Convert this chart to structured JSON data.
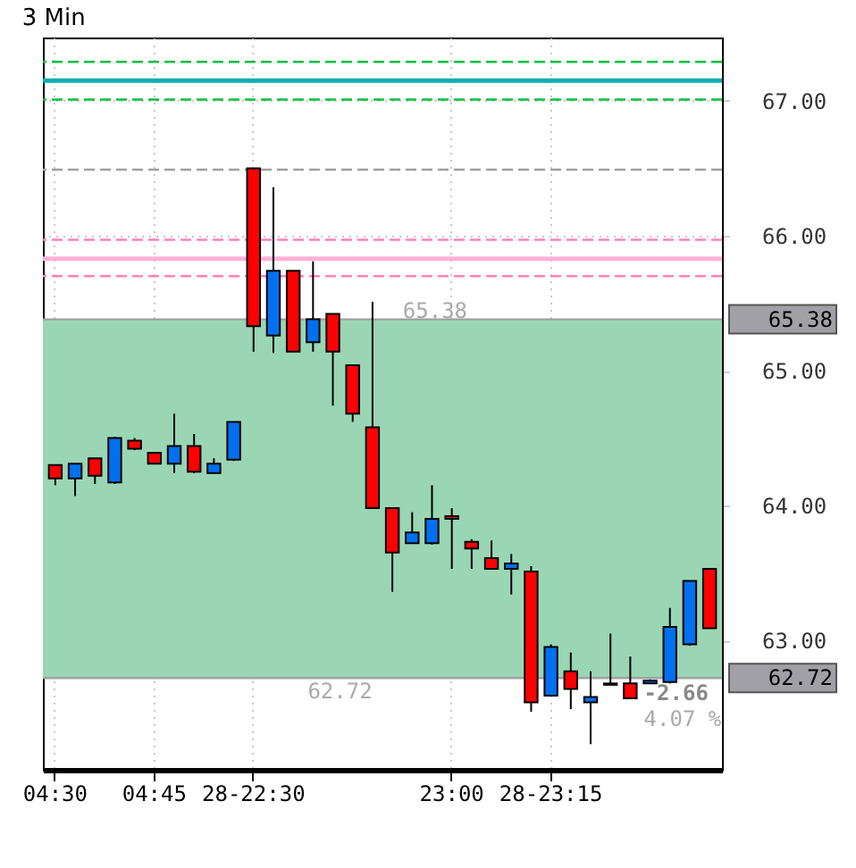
{
  "chart_data": {
    "type": "candlestick",
    "title": "3 Min",
    "categories": [
      "04:30",
      null,
      null,
      null,
      null,
      "04:45",
      null,
      null,
      null,
      null,
      "28-22:30",
      null,
      null,
      null,
      null,
      null,
      null,
      null,
      null,
      null,
      "23:00",
      null,
      null,
      null,
      null,
      "28-23:15",
      null,
      null,
      null,
      null,
      null,
      null,
      null,
      null
    ],
    "ohlc": [
      [
        64.3,
        64.3,
        64.15,
        64.2
      ],
      [
        64.2,
        64.31,
        64.07,
        64.31
      ],
      [
        64.35,
        64.35,
        64.16,
        64.22
      ],
      [
        64.17,
        64.51,
        64.16,
        64.5
      ],
      [
        64.48,
        64.5,
        64.41,
        64.42
      ],
      [
        64.39,
        64.39,
        64.31,
        64.31
      ],
      [
        64.31,
        64.68,
        64.24,
        64.44
      ],
      [
        64.44,
        64.53,
        64.24,
        64.25
      ],
      [
        64.24,
        64.35,
        64.24,
        64.31
      ],
      [
        64.34,
        64.62,
        64.33,
        64.62
      ],
      [
        66.5,
        66.5,
        65.14,
        65.33
      ],
      [
        65.26,
        66.36,
        65.13,
        65.74
      ],
      [
        65.74,
        65.74,
        65.14,
        65.14
      ],
      [
        65.21,
        65.81,
        65.14,
        65.38
      ],
      [
        65.42,
        65.42,
        64.74,
        65.14
      ],
      [
        65.04,
        65.04,
        64.62,
        64.68
      ],
      [
        64.58,
        65.51,
        63.98,
        63.98
      ],
      [
        63.98,
        63.98,
        63.36,
        63.65
      ],
      [
        63.72,
        63.95,
        63.72,
        63.8
      ],
      [
        63.72,
        64.15,
        63.71,
        63.9
      ],
      [
        63.92,
        63.98,
        63.53,
        63.9
      ],
      [
        63.73,
        63.75,
        63.53,
        63.68
      ],
      [
        63.61,
        63.74,
        63.53,
        63.53
      ],
      [
        63.53,
        63.64,
        63.34,
        63.57
      ],
      [
        63.51,
        63.55,
        62.47,
        62.54
      ],
      [
        62.59,
        62.97,
        62.59,
        62.95
      ],
      [
        62.77,
        62.91,
        62.49,
        62.64
      ],
      [
        62.54,
        62.77,
        62.23,
        62.58
      ],
      [
        62.68,
        63.05,
        62.67,
        62.67
      ],
      [
        62.68,
        62.88,
        62.57,
        62.57
      ],
      [
        62.68,
        62.71,
        62.68,
        62.7
      ],
      [
        62.69,
        63.24,
        62.68,
        63.1
      ],
      [
        62.97,
        63.44,
        62.96,
        63.44
      ],
      [
        63.53,
        63.53,
        63.09,
        63.09
      ]
    ],
    "colors": [
      "#ff0000",
      "#0070f0",
      "#ff0000",
      "#0070f0",
      "#ff0000",
      "#ff0000",
      "#0070f0",
      "#ff0000",
      "#0070f0",
      "#0070f0",
      "#ff0000",
      "#0070f0",
      "#ff0000",
      "#0070f0",
      "#ff0000",
      "#ff0000",
      "#ff0000",
      "#ff0000",
      "#0070f0",
      "#0070f0",
      "#ff0000",
      "#ff0000",
      "#ff0000",
      "#0070f0",
      "#ff0000",
      "#0070f0",
      "#ff0000",
      "#0070f0",
      "#ff0000",
      "#ff0000",
      "#0070f0",
      "#0070f0",
      "#0070f0",
      "#ff0000"
    ],
    "ylim": [
      62.04,
      67.47
    ],
    "yticks": [
      {
        "value": 63,
        "label": "63.00"
      },
      {
        "value": 64,
        "label": "64.00"
      },
      {
        "value": 65,
        "label": "65.00"
      },
      {
        "value": 66,
        "label": "66.00"
      },
      {
        "value": 67,
        "label": "67.00"
      }
    ],
    "grid": true,
    "ref_lines": [
      {
        "axis": "y",
        "value": 67.29,
        "color": "#00c040",
        "line_style": "dashed"
      },
      {
        "axis": "y",
        "value": 67.15,
        "color": "#00b0b0",
        "line_style": "solid"
      },
      {
        "axis": "y",
        "value": 67.01,
        "color": "#00c040",
        "line_style": "dashed"
      },
      {
        "axis": "y",
        "value": 66.49,
        "color": "#a0a0a0",
        "line_style": "dashed"
      },
      {
        "axis": "y",
        "value": 65.97,
        "color": "#ff80c0",
        "line_style": "dashed"
      },
      {
        "axis": "y",
        "value": 65.83,
        "color": "#ffb0d8",
        "line_style": "solid"
      },
      {
        "axis": "y",
        "value": 65.7,
        "color": "#ff80c0",
        "line_style": "dashed"
      },
      {
        "axis": "y",
        "value": 65.38,
        "label": "65.38",
        "color": "#a0a0a0",
        "line_style": "solid"
      },
      {
        "axis": "y",
        "value": 62.72,
        "label": "62.72",
        "color": "#a0a0a0",
        "line_style": "solid"
      }
    ],
    "bands": [
      {
        "axis": "y",
        "from": 62.72,
        "to": 65.38,
        "color": "#9ad6b4"
      }
    ],
    "annotations": [
      "65.38",
      "62.72",
      "-2.66",
      "4.07 %"
    ]
  }
}
